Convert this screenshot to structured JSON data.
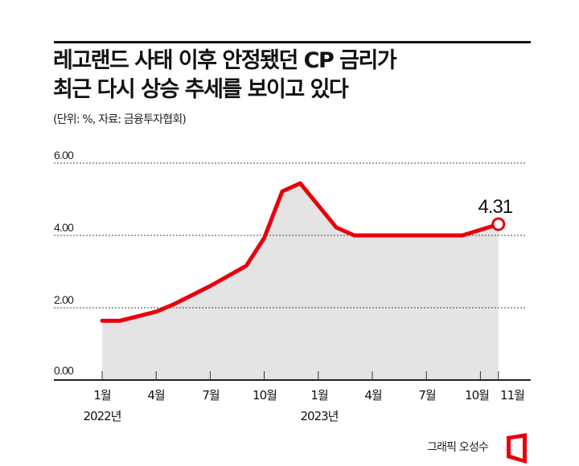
{
  "header": {
    "title_line1": "레고랜드 사태 이후 안정됐던 CP 금리가",
    "title_line2": "최근 다시 상승 추세를 보이고 있다",
    "subtitle": "(단위: %, 자료: 금융투자협회)"
  },
  "credit": {
    "text": "그래픽 오성수",
    "logo_icon": "red-frame-logo-icon"
  },
  "colors": {
    "line": "#e8000b",
    "area_fill": "#e4e4e4",
    "gridline": "#333333",
    "text": "#111111"
  },
  "axis": {
    "y_ticks": [
      "6.00",
      "4.00",
      "2.00",
      "0.00"
    ],
    "x_ticks": [
      "1월",
      "4월",
      "7월",
      "10월",
      "1월",
      "4월",
      "7월",
      "10월",
      "11월"
    ],
    "year_labels": [
      "2022년",
      "2023년"
    ]
  },
  "callout": {
    "value_label": "4.31"
  },
  "chart_data": {
    "type": "area",
    "title": "레고랜드 사태 이후 안정됐던 CP 금리가 최근 다시 상승 추세를 보이고 있다",
    "subtitle": "(단위: %, 자료: 금융투자협회)",
    "xlabel": "",
    "ylabel": "%",
    "ylim": [
      0,
      6
    ],
    "y_ticks": [
      0,
      2,
      4,
      6
    ],
    "grid": "horizontal dotted",
    "legend": "none",
    "x_tick_labels": [
      "1월 2022년",
      "4월",
      "7월",
      "10월",
      "1월 2023년",
      "4월",
      "7월",
      "10월",
      "11월"
    ],
    "series": [
      {
        "name": "CP 금리",
        "x": [
          "2022-01",
          "2022-02",
          "2022-04",
          "2022-05",
          "2022-07",
          "2022-09",
          "2022-10",
          "2022-11",
          "2022-12",
          "2023-02",
          "2023-03",
          "2023-09",
          "2023-11"
        ],
        "values": [
          1.64,
          1.64,
          1.89,
          2.1,
          2.6,
          3.16,
          3.93,
          5.22,
          5.44,
          4.22,
          4.0,
          4.0,
          4.31
        ]
      }
    ],
    "annotations": [
      {
        "x": "2023-11",
        "label": "4.31",
        "marker": "open circle"
      }
    ]
  }
}
